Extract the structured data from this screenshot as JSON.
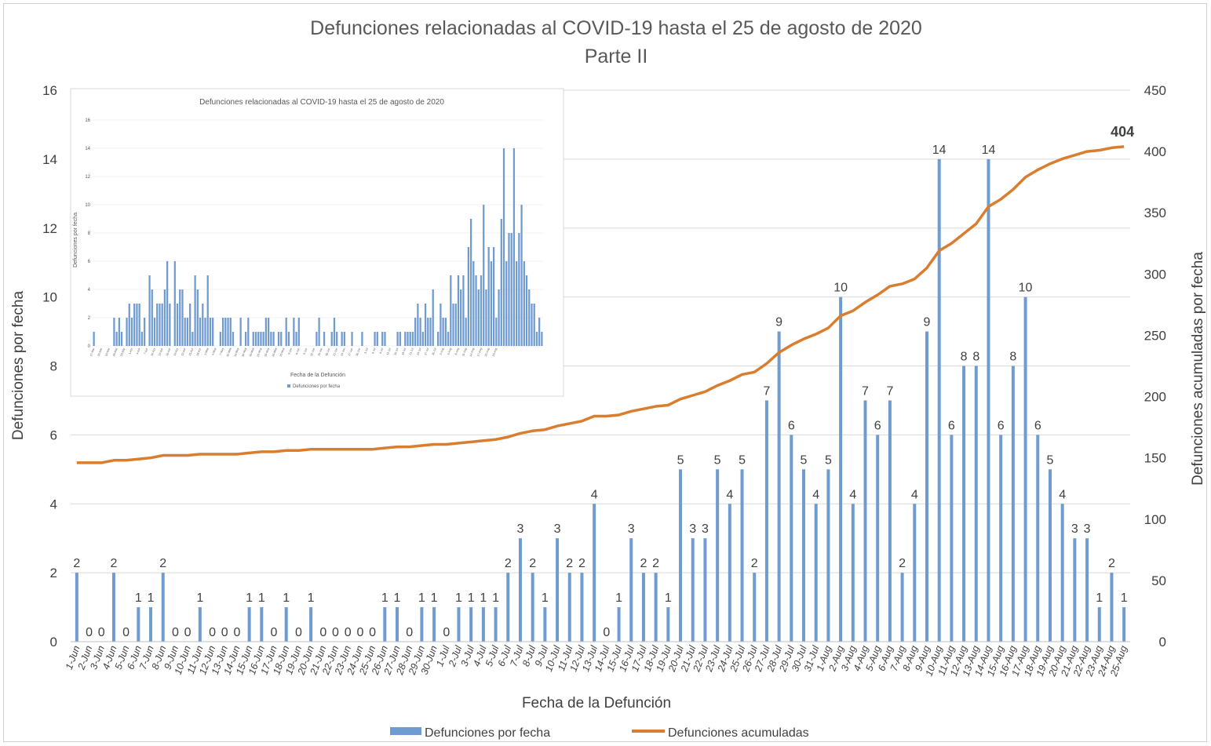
{
  "chart_data": [
    {
      "type": "bar",
      "title": "Defunciones relacionadas al COVID-19 hasta el 25 de agosto de 2020",
      "subtitle": "Parte II",
      "xlabel": "Fecha de la Defunción",
      "ylabel": "Defunciones por fecha",
      "y2label": "Defunciones acumuladas por fecha",
      "ylim": [
        0,
        16
      ],
      "yticks": [
        0,
        2,
        4,
        6,
        8,
        10,
        12,
        14,
        16
      ],
      "y2lim": [
        0,
        450
      ],
      "y2ticks": [
        0,
        50,
        100,
        150,
        200,
        250,
        300,
        350,
        400,
        450
      ],
      "grid": true,
      "legend_position": "bottom",
      "colors": {
        "bars": "#6f9bd1",
        "line": "#d97d2e",
        "grid": "#d9d9d9"
      },
      "categories": [
        "1-Jun",
        "2-Jun",
        "3-Jun",
        "4-Jun",
        "5-Jun",
        "6-Jun",
        "7-Jun",
        "8-Jun",
        "9-Jun",
        "10-Jun",
        "11-Jun",
        "12-Jun",
        "13-Jun",
        "14-Jun",
        "15-Jun",
        "16-Jun",
        "17-Jun",
        "18-Jun",
        "19-Jun",
        "20-Jun",
        "21-Jun",
        "22-Jun",
        "23-Jun",
        "24-Jun",
        "25-Jun",
        "26-Jun",
        "27-Jun",
        "28-Jun",
        "29-Jun",
        "30-Jun",
        "1-Jul",
        "2-Jul",
        "3-Jul",
        "4-Jul",
        "5-Jul",
        "6-Jul",
        "7-Jul",
        "8-Jul",
        "9-Jul",
        "10-Jul",
        "11-Jul",
        "12-Jul",
        "13-Jul",
        "14-Jul",
        "15-Jul",
        "16-Jul",
        "17-Jul",
        "18-Jul",
        "19-Jul",
        "20-Jul",
        "21-Jul",
        "22-Jul",
        "23-Jul",
        "24-Jul",
        "25-Jul",
        "26-Jul",
        "27-Jul",
        "28-Jul",
        "29-Jul",
        "30-Jul",
        "31-Jul",
        "1-Aug",
        "2-Aug",
        "3-Aug",
        "4-Aug",
        "5-Aug",
        "6-Aug",
        "7-Aug",
        "8-Aug",
        "9-Aug",
        "10-Aug",
        "11-Aug",
        "12-Aug",
        "13-Aug",
        "14-Aug",
        "15-Aug",
        "16-Aug",
        "17-Aug",
        "18-Aug",
        "19-Aug",
        "20-Aug",
        "21-Aug",
        "22-Aug",
        "23-Aug",
        "24-Aug",
        "25-Aug"
      ],
      "series": [
        {
          "name": "Defunciones por fecha",
          "type": "bar",
          "values": [
            2,
            0,
            0,
            2,
            0,
            1,
            1,
            2,
            0,
            0,
            1,
            0,
            0,
            0,
            1,
            1,
            0,
            1,
            0,
            1,
            0,
            0,
            0,
            0,
            0,
            1,
            1,
            0,
            1,
            1,
            0,
            1,
            1,
            1,
            1,
            2,
            3,
            2,
            1,
            3,
            2,
            2,
            4,
            0,
            1,
            3,
            2,
            2,
            1,
            5,
            3,
            3,
            5,
            4,
            5,
            2,
            7,
            9,
            6,
            5,
            4,
            5,
            10,
            4,
            7,
            6,
            7,
            2,
            4,
            9,
            14,
            6,
            8,
            8,
            14,
            6,
            8,
            10,
            6,
            5,
            4,
            3,
            3,
            1,
            2,
            1
          ]
        },
        {
          "name": "Defunciones acumuladas",
          "type": "line",
          "axis": "right",
          "values": [
            146,
            146,
            146,
            148,
            148,
            149,
            150,
            152,
            152,
            152,
            153,
            153,
            153,
            153,
            154,
            155,
            155,
            156,
            156,
            157,
            157,
            157,
            157,
            157,
            157,
            158,
            159,
            159,
            160,
            161,
            161,
            162,
            163,
            164,
            165,
            167,
            170,
            172,
            173,
            176,
            178,
            180,
            184,
            184,
            185,
            188,
            190,
            192,
            193,
            198,
            201,
            204,
            209,
            213,
            218,
            220,
            227,
            236,
            242,
            247,
            251,
            256,
            266,
            270,
            277,
            283,
            290,
            292,
            296,
            305,
            319,
            325,
            333,
            341,
            355,
            361,
            369,
            379,
            385,
            390,
            394,
            397,
            400,
            401,
            403,
            404
          ]
        }
      ],
      "last_value_label": "404"
    },
    {
      "type": "bar",
      "title": "Defunciones relacionadas al COVID-19 hasta el 25 de agosto de 2020",
      "xlabel": "Fecha de la Defunción",
      "ylabel": "Defunciones por fecha",
      "ylim": [
        0,
        16
      ],
      "yticks": [
        0,
        2,
        4,
        6,
        8,
        10,
        12,
        14,
        16
      ],
      "legend": [
        "Defunciones por fecha"
      ],
      "x_start": "17-Mar",
      "x_end": "25-Aug",
      "values": [
        1,
        0,
        0,
        0,
        0,
        0,
        0,
        0,
        2,
        1,
        2,
        1,
        0,
        2,
        3,
        2,
        3,
        3,
        3,
        1,
        2,
        0,
        5,
        4,
        2,
        3,
        3,
        3,
        4,
        6,
        3,
        0,
        6,
        3,
        4,
        4,
        2,
        2,
        3,
        1,
        5,
        4,
        2,
        3,
        2,
        5,
        2,
        2,
        0,
        0,
        1,
        2,
        2,
        2,
        2,
        1,
        0,
        0,
        2,
        0,
        1,
        2,
        0,
        1,
        1,
        1,
        1,
        1,
        2,
        2,
        1,
        1,
        0,
        1,
        1,
        0,
        2,
        1,
        0,
        2,
        1,
        2,
        0,
        0,
        0,
        0,
        0,
        0,
        1,
        2,
        0,
        1,
        0,
        0,
        1,
        2,
        1,
        0,
        1,
        1,
        0,
        0,
        1,
        0,
        0,
        0,
        1,
        0,
        0,
        0,
        0,
        1,
        1,
        0,
        1,
        1,
        0,
        0,
        0,
        0,
        1,
        1,
        0,
        1,
        1,
        1,
        1,
        2,
        3,
        2,
        1,
        3,
        2,
        2,
        4,
        0,
        1,
        3,
        2,
        2,
        1,
        5,
        3,
        3,
        5,
        4,
        5,
        2,
        7,
        9,
        6,
        5,
        4,
        5,
        10,
        4,
        7,
        6,
        7,
        2,
        4,
        9,
        14,
        6,
        8,
        8,
        14,
        6,
        8,
        10,
        6,
        5,
        4,
        3,
        3,
        1,
        2,
        1
      ],
      "tick_labels": [
        "17-Mar",
        "20-Mar",
        "23-Mar",
        "26-Mar",
        "29-Mar",
        "1-Apr",
        "4-Apr",
        "7-Apr",
        "10-Apr",
        "13-Apr",
        "16-Apr",
        "19-Apr",
        "22-Apr",
        "25-Apr",
        "28-Apr",
        "1-May",
        "4-May",
        "7-May",
        "10-May",
        "13-May",
        "16-May",
        "19-May",
        "22-May",
        "25-May",
        "28-May",
        "31-May",
        "3-Jun",
        "6-Jun",
        "9-Jun",
        "12-Jun",
        "15-Jun",
        "18-Jun",
        "21-Jun",
        "24-Jun",
        "27-Jun",
        "30-Jun",
        "3-Jul",
        "6-Jul",
        "9-Jul",
        "12-Jul",
        "15-Jul",
        "18-Jul",
        "21-Jul",
        "24-Jul",
        "27-Jul",
        "30-Jul",
        "2-Aug",
        "5-Aug",
        "8-Aug",
        "11-Aug",
        "14-Aug",
        "17-Aug",
        "20-Aug",
        "23-Aug"
      ]
    }
  ]
}
